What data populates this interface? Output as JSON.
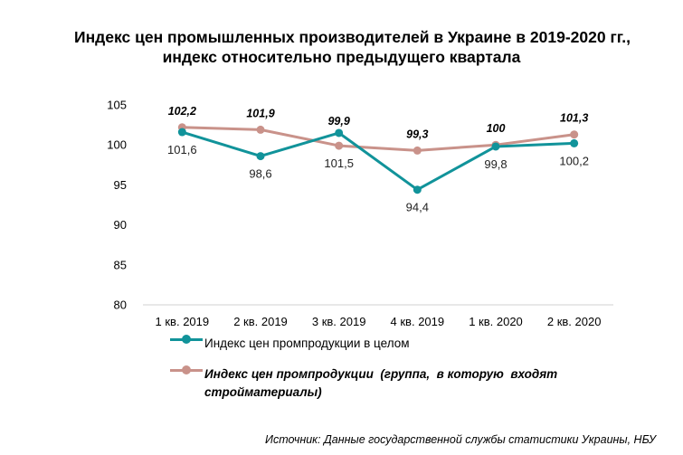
{
  "chart_data": {
    "type": "line",
    "title": "Индекс цен промышленных производителей в Украине в 2019-2020 гг.,",
    "subtitle": "индекс относительно предыдущего квартала",
    "categories": [
      "1 кв. 2019",
      "2 кв. 2019",
      "3 кв. 2019",
      "4 кв. 2019",
      "1 кв. 2020",
      "2 кв. 2020"
    ],
    "ylim": [
      80,
      105
    ],
    "yticks": [
      "80",
      "85",
      "90",
      "95",
      "100",
      "105"
    ],
    "grid": false,
    "legend_position": "bottom",
    "series": [
      {
        "name": "Индекс цен промпродукции в целом",
        "values": [
          101.6,
          98.6,
          101.5,
          94.4,
          99.8,
          100.2
        ],
        "labels": [
          "101,6",
          "98,6",
          "101,5",
          "94,4",
          "99,8",
          "100,2"
        ],
        "color": "#11939a"
      },
      {
        "name": "Индекс цен промпродукции  (группа,  в которую  входят стройматериалы)",
        "values": [
          102.2,
          101.9,
          99.9,
          99.3,
          100,
          101.3
        ],
        "labels": [
          "102,2",
          "101,9",
          "99,9",
          "99,3",
          "100",
          "101,3"
        ],
        "color": "#c9928a"
      }
    ]
  },
  "source": "Источник: Данные государственной службы статистики Украины, НБУ"
}
